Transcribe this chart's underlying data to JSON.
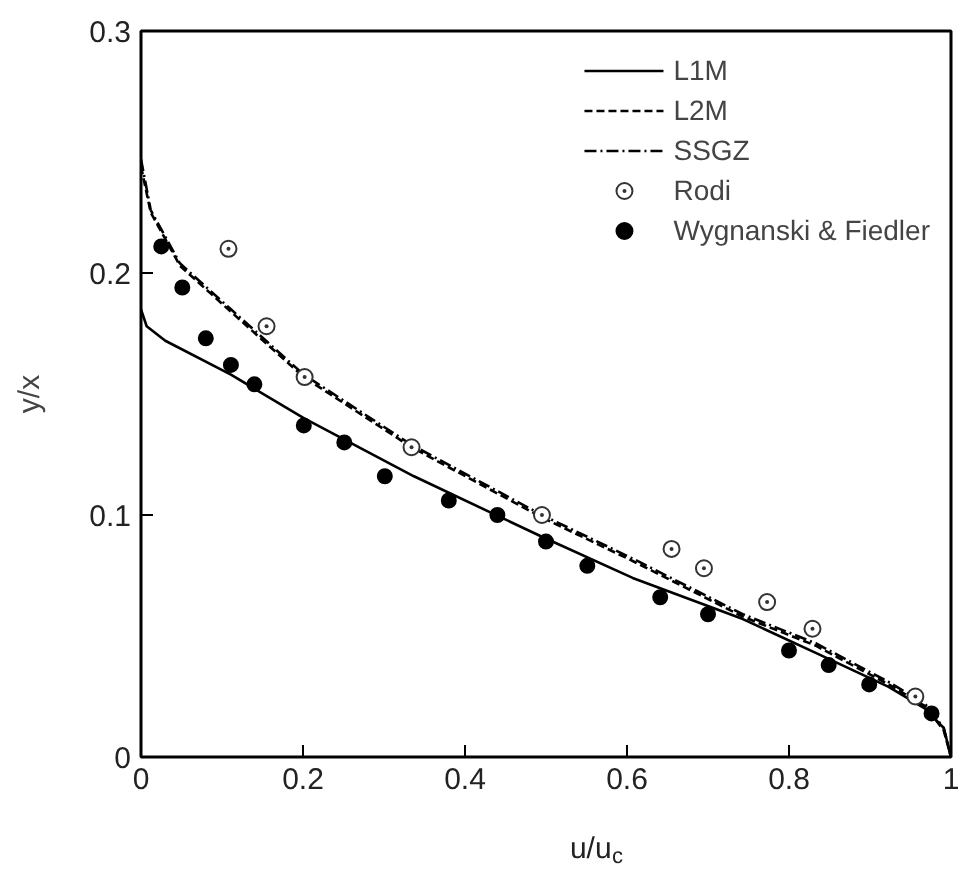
{
  "chart_data": {
    "type": "line",
    "xlabel": "u/u$_{c}$",
    "ylabel": "y/x",
    "xlim": [
      0,
      1
    ],
    "ylim": [
      0,
      0.3
    ],
    "xticks": [
      0,
      0.2,
      0.4,
      0.6,
      0.8,
      1
    ],
    "yticks": [
      0,
      0.1,
      0.2,
      0.3
    ],
    "grid": false,
    "legend": "top right",
    "series": [
      {
        "name": "L1M",
        "line_style": "solid",
        "color": "#000000",
        "x": [
          0,
          0.007,
          0.03,
          0.111,
          0.201,
          0.337,
          0.495,
          0.607,
          0.743,
          0.833,
          0.923,
          0.968,
          0.991,
          1
        ],
        "values": [
          0.185,
          0.178,
          0.172,
          0.158,
          0.14,
          0.116,
          0.091,
          0.074,
          0.057,
          0.043,
          0.029,
          0.02,
          0.012,
          0
        ]
      },
      {
        "name": "L2M",
        "line_style": "dashed",
        "color": "#000000",
        "x": [
          0,
          0.012,
          0.048,
          0.111,
          0.201,
          0.334,
          0.495,
          0.607,
          0.743,
          0.833,
          0.923,
          0.968,
          0.991,
          1
        ],
        "values": [
          0.244,
          0.225,
          0.203,
          0.184,
          0.157,
          0.128,
          0.099,
          0.081,
          0.058,
          0.046,
          0.03,
          0.021,
          0.011,
          0
        ]
      },
      {
        "name": "SSGZ",
        "line_style": "dashdot",
        "color": "#000000",
        "x": [
          0,
          0.012,
          0.048,
          0.111,
          0.201,
          0.334,
          0.495,
          0.607,
          0.743,
          0.833,
          0.923,
          0.968,
          0.991,
          1
        ],
        "values": [
          0.247,
          0.226,
          0.204,
          0.185,
          0.158,
          0.129,
          0.1,
          0.082,
          0.059,
          0.047,
          0.031,
          0.022,
          0.012,
          0
        ]
      },
      {
        "name": "Rodi",
        "type": "scatter",
        "marker": "circle_dot",
        "color": "#333333",
        "x": [
          0.108,
          0.155,
          0.202,
          0.334,
          0.495,
          0.655,
          0.695,
          0.773,
          0.829,
          0.956
        ],
        "values": [
          0.21,
          0.178,
          0.157,
          0.128,
          0.1,
          0.086,
          0.078,
          0.064,
          0.053,
          0.025
        ]
      },
      {
        "name": "Wygnanski & Fiedler",
        "type": "scatter",
        "marker": "circle",
        "color": "#000000",
        "x": [
          0.025,
          0.051,
          0.08,
          0.111,
          0.14,
          0.201,
          0.251,
          0.301,
          0.38,
          0.44,
          0.5,
          0.551,
          0.641,
          0.7,
          0.8,
          0.849,
          0.899,
          0.976
        ],
        "values": [
          0.211,
          0.194,
          0.173,
          0.162,
          0.154,
          0.137,
          0.13,
          0.116,
          0.106,
          0.1,
          0.089,
          0.079,
          0.066,
          0.059,
          0.044,
          0.038,
          0.03,
          0.018
        ]
      }
    ]
  }
}
